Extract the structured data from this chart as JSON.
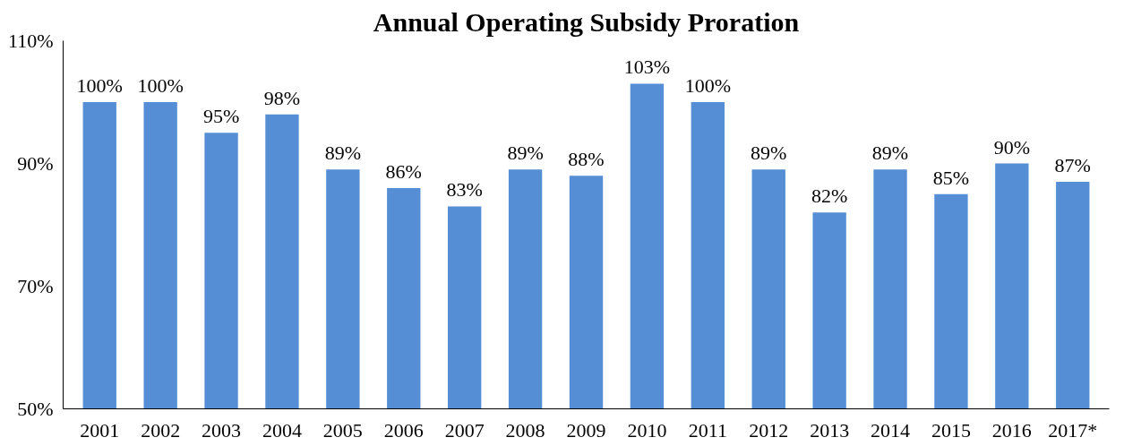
{
  "chart_data": {
    "type": "bar",
    "title": "Annual Operating Subsidy Proration",
    "categories": [
      "2001",
      "2002",
      "2003",
      "2004",
      "2005",
      "2006",
      "2007",
      "2008",
      "2009",
      "2010",
      "2011",
      "2012",
      "2013",
      "2014",
      "2015",
      "2016",
      "2017*"
    ],
    "values": [
      100,
      100,
      95,
      98,
      89,
      86,
      83,
      89,
      88,
      103,
      100,
      89,
      82,
      89,
      85,
      90,
      87
    ],
    "value_labels": [
      "100%",
      "100%",
      "95%",
      "98%",
      "89%",
      "86%",
      "83%",
      "89%",
      "88%",
      "103%",
      "100%",
      "89%",
      "82%",
      "89%",
      "85%",
      "90%",
      "87%"
    ],
    "color": "#558ed5",
    "ylim": [
      50,
      110
    ],
    "yticks": [
      {
        "value": 50,
        "label": "50%"
      },
      {
        "value": 70,
        "label": "70%"
      },
      {
        "value": 90,
        "label": "90%"
      },
      {
        "value": 110,
        "label": "110%"
      }
    ],
    "grid": false
  }
}
